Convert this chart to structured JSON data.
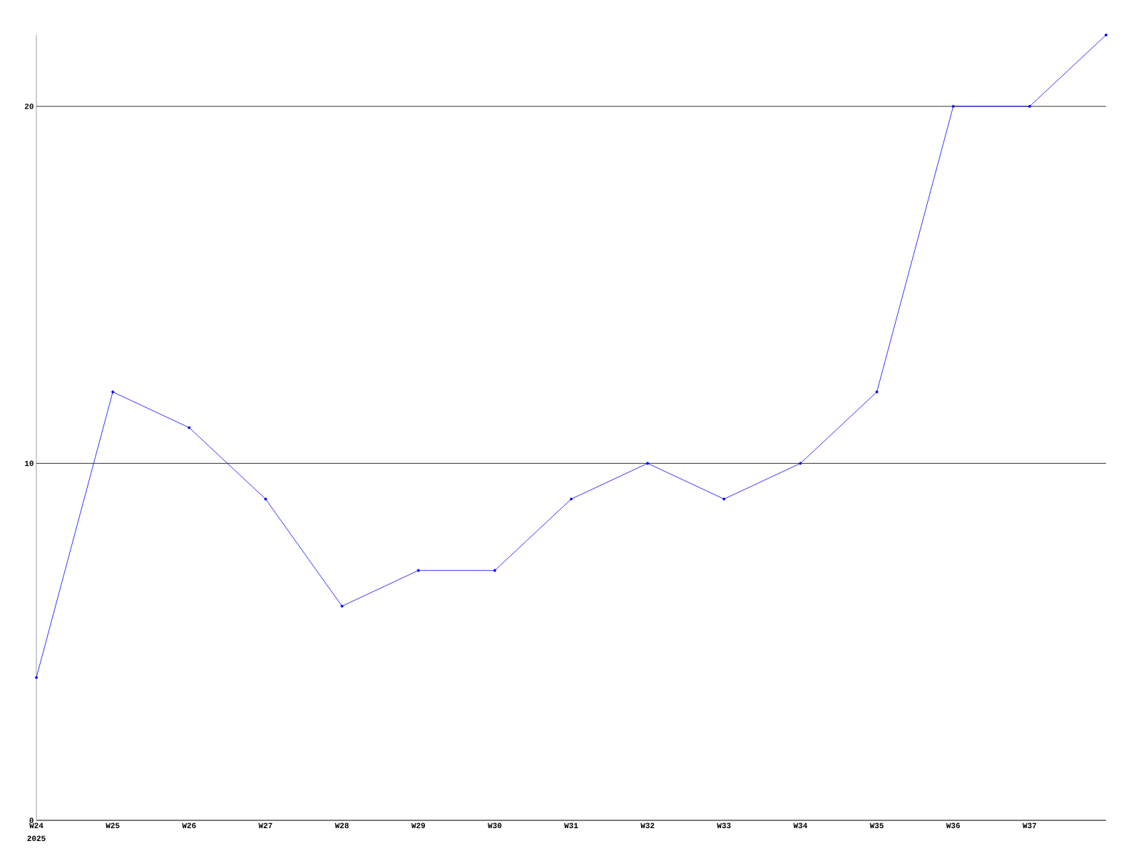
{
  "chart_data": {
    "type": "line",
    "categories": [
      "W24",
      "W25",
      "W26",
      "W27",
      "W28",
      "W29",
      "W30",
      "W31",
      "W32",
      "W33",
      "W34",
      "W35",
      "W36",
      "W37",
      null
    ],
    "values": [
      4,
      12,
      11,
      9,
      6,
      7,
      7,
      9,
      10,
      9,
      10,
      12,
      20,
      20,
      22
    ],
    "color": "#0000ff",
    "ylim": [
      0,
      22
    ],
    "yticks": [
      0,
      10,
      20
    ],
    "grid": "y",
    "marker": "circle",
    "annotations": [
      "2025"
    ]
  }
}
